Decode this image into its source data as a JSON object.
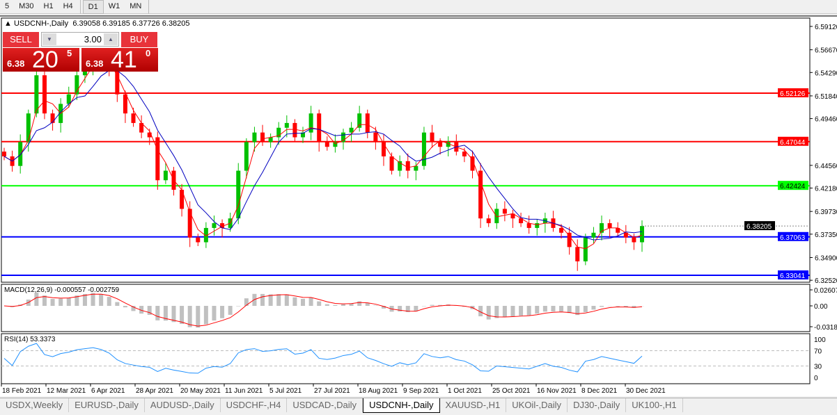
{
  "toolbar": {
    "timeframes": [
      "5",
      "M30",
      "H1",
      "H4",
      "D1",
      "W1",
      "MN"
    ],
    "active": "D1"
  },
  "chart": {
    "title": "USDCNH-,Daily",
    "ohlc": "6.39058 6.39185 6.37726 6.38205"
  },
  "trade": {
    "sell_label": "SELL",
    "buy_label": "BUY",
    "lot": "3.00",
    "sell_small": "6.38",
    "sell_big": "20",
    "sell_pip": "5",
    "buy_small": "6.38",
    "buy_big": "41",
    "buy_pip": "0"
  },
  "price_axis": [
    "6.59120",
    "6.56670",
    "6.54290",
    "6.51840",
    "6.49460",
    "6.44560",
    "6.42180",
    "6.39730",
    "6.37350",
    "6.34900",
    "6.32520"
  ],
  "levels": [
    {
      "price": "6.52126",
      "color": "#ff0000"
    },
    {
      "price": "6.47044",
      "color": "#ff0000"
    },
    {
      "price": "6.42424",
      "color": "#00ff00"
    },
    {
      "price": "6.37063",
      "color": "#0000ff"
    },
    {
      "price": "6.33041",
      "color": "#0000ff"
    }
  ],
  "current_price": "6.38205",
  "colors": {
    "bull": "#00c000",
    "bear": "#ff0000",
    "ma_fast": "#ff0000",
    "ma_slow": "#0000c0",
    "rsi": "#1e90ff",
    "macd_hist": "#c0c0c0",
    "macd_signal": "#ff0000"
  },
  "chart_data": {
    "type": "candlestick",
    "closes": [
      6.455,
      6.445,
      6.47,
      6.5,
      6.54,
      6.5,
      6.49,
      6.51,
      6.52,
      6.54,
      6.55,
      6.56,
      6.555,
      6.545,
      6.52,
      6.5,
      6.49,
      6.48,
      6.475,
      6.43,
      6.44,
      6.42,
      6.4,
      6.37,
      6.365,
      6.38,
      6.385,
      6.38,
      6.39,
      6.44,
      6.47,
      6.48,
      6.47,
      6.475,
      6.485,
      6.49,
      6.475,
      6.48,
      6.5,
      6.47,
      6.465,
      6.47,
      6.48,
      6.485,
      6.5,
      6.48,
      6.47,
      6.455,
      6.44,
      6.45,
      6.44,
      6.445,
      6.48,
      6.47,
      6.465,
      6.47,
      6.46,
      6.455,
      6.44,
      6.39,
      6.385,
      6.4,
      6.395,
      6.39,
      6.385,
      6.38,
      6.385,
      6.39,
      6.38,
      6.375,
      6.36,
      6.345,
      6.37,
      6.375,
      6.385,
      6.38,
      6.375,
      6.37,
      6.365,
      6.382
    ],
    "dates": [
      "18 Feb 2021",
      "12 Mar 2021",
      "6 Apr 2021",
      "28 Apr 2021",
      "20 May 2021",
      "11 Jun 2021",
      "5 Jul 2021",
      "27 Jul 2021",
      "18 Aug 2021",
      "9 Sep 2021",
      "1 Oct 2021",
      "25 Oct 2021",
      "16 Nov 2021",
      "8 Dec 2021",
      "30 Dec 2021"
    ],
    "ylim": [
      6.3252,
      6.5912
    ]
  },
  "macd": {
    "label": "MACD(12,26,9) -0.000557 -0.002759",
    "axis": [
      "0.02607",
      "0.00",
      "-0.03187"
    ]
  },
  "rsi": {
    "label": "RSI(14) 53.3373",
    "axis": [
      "100",
      "70",
      "30",
      "0"
    ]
  },
  "tabs": [
    "USDX,Weekly",
    "EURUSD-,Daily",
    "AUDUSD-,Daily",
    "USDCHF-,H4",
    "USDCAD-,Daily",
    "USDCNH-,Daily",
    "XAUUSD-,H1",
    "UKOil-,Daily",
    "DJ30-,Daily",
    "UK100-,H1"
  ],
  "active_tab": "USDCNH-,Daily"
}
